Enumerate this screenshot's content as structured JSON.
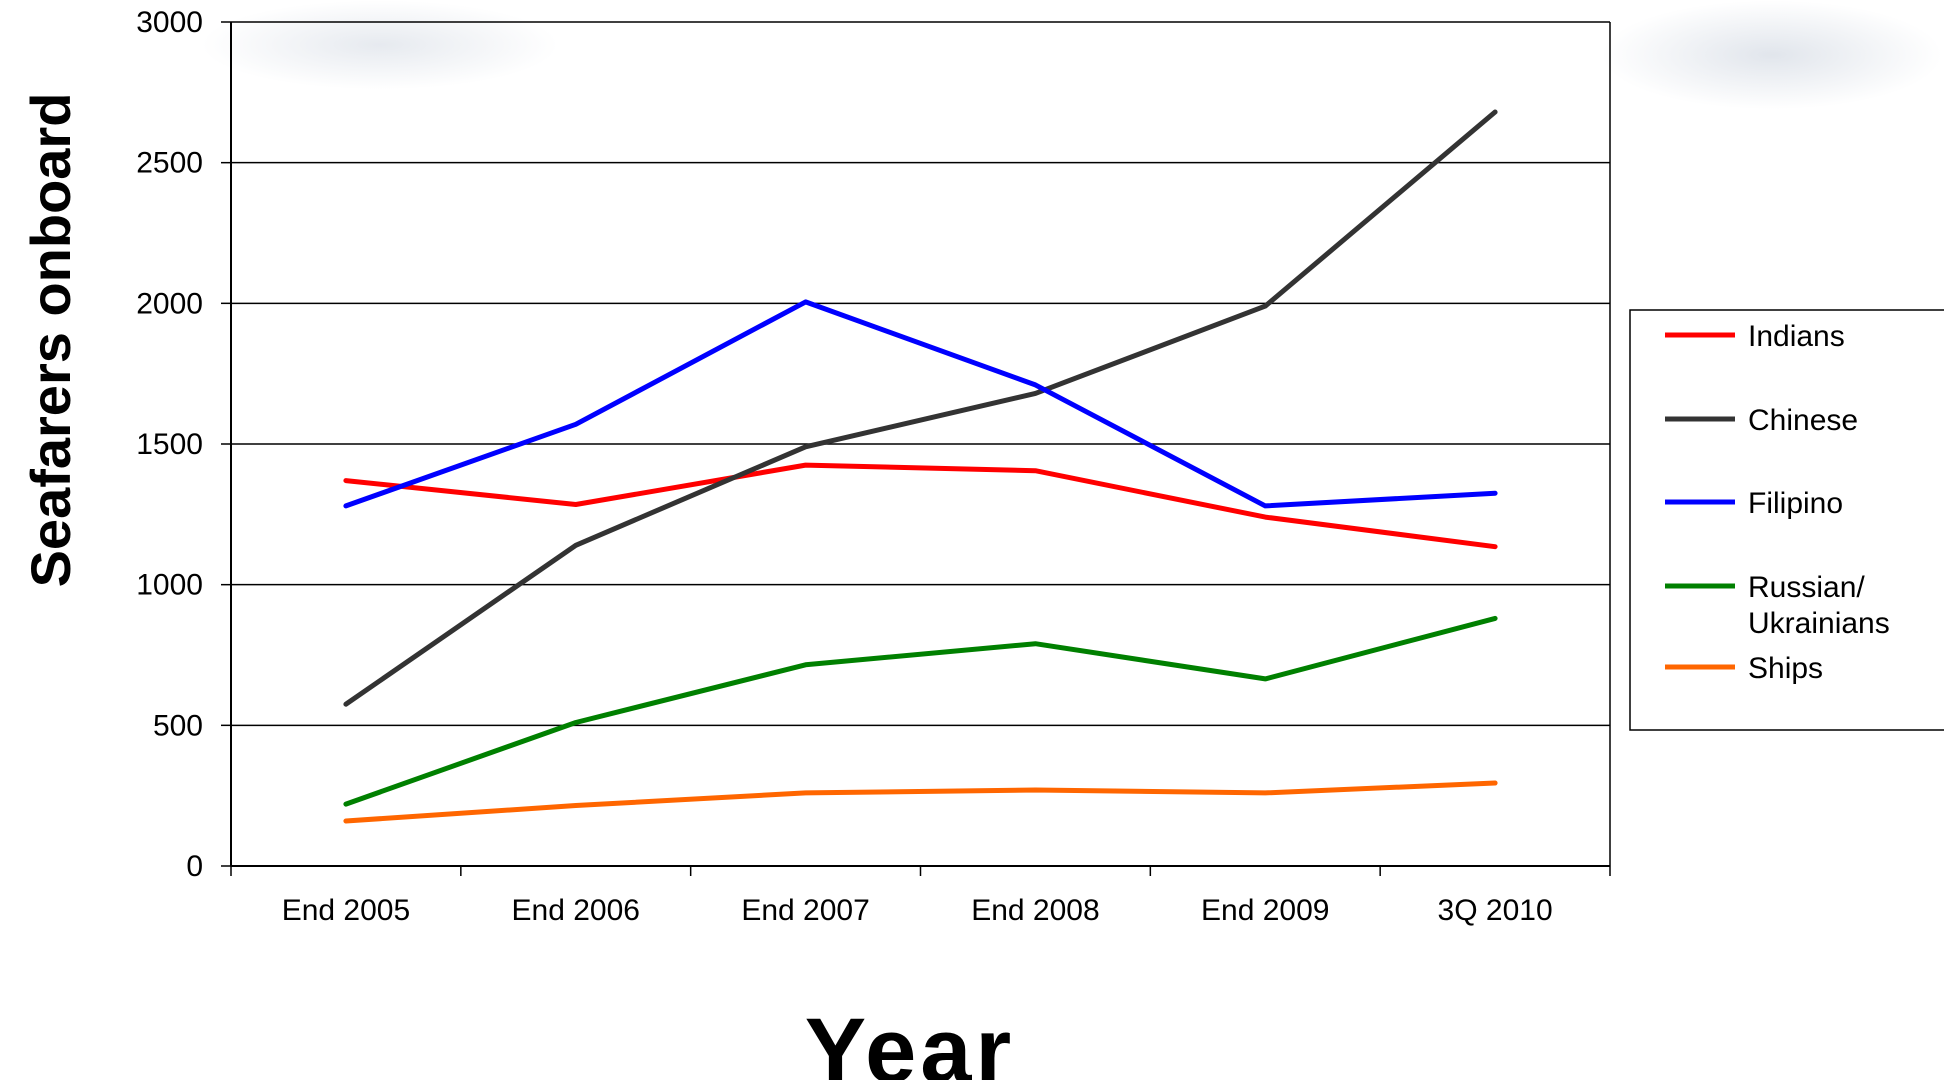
{
  "chart_data": {
    "type": "line",
    "categories": [
      "End 2005",
      "End 2006",
      "End 2007",
      "End 2008",
      "End 2009",
      "3Q 2010"
    ],
    "ylabel": "Seafarers onboard",
    "xlabel": "Year",
    "ylim": [
      0,
      3000
    ],
    "yticks": [
      "0",
      "500",
      "1000",
      "1500",
      "2000",
      "2500",
      "3000"
    ],
    "ytick_values": [
      0,
      500,
      1000,
      1500,
      2000,
      2500,
      3000
    ],
    "grid": "horizontal",
    "legend_position": "right",
    "series": [
      {
        "name": "Indians",
        "color": "#ff0000",
        "values": [
          1370,
          1285,
          1425,
          1405,
          1240,
          1135
        ]
      },
      {
        "name": "Chinese",
        "color": "#333333",
        "values": [
          575,
          1140,
          1490,
          1680,
          1990,
          2680
        ]
      },
      {
        "name": "Filipino",
        "color": "#0000ff",
        "values": [
          1280,
          1570,
          2005,
          1710,
          1280,
          1325
        ]
      },
      {
        "name": "Russian/ Ukrainians",
        "name_lines": [
          "Russian/",
          "Ukrainians"
        ],
        "color": "#008000",
        "values": [
          220,
          510,
          715,
          790,
          665,
          880
        ]
      },
      {
        "name": "Ships",
        "color": "#ff6600",
        "values": [
          160,
          215,
          260,
          270,
          260,
          295
        ]
      }
    ]
  }
}
